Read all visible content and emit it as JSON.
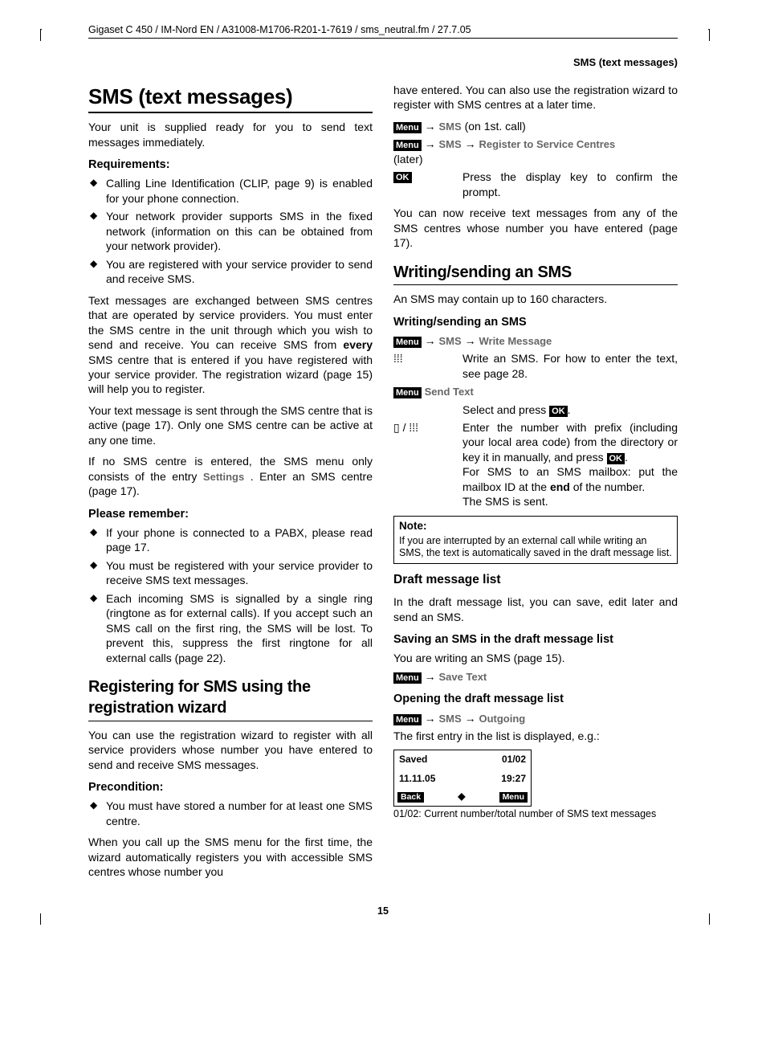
{
  "header_path": "Gigaset C 450 / IM-Nord EN / A31008-M1706-R201-1-7619 / sms_neutral.fm / 27.7.05",
  "running_head": "SMS (text messages)",
  "page_number": "15",
  "labels": {
    "menu": "Menu",
    "ok": "OK",
    "arrow": "→"
  },
  "left": {
    "h1": "SMS (text messages)",
    "intro": "Your unit is supplied ready for you to send text messages immediately.",
    "req_h": "Requirements:",
    "req": [
      "Calling Line Identification (CLIP, page 9) is enabled for your phone connection.",
      "Your network provider supports SMS in the fixed network (information on this can be obtained from your network provider).",
      "You are registered with your service provider to send and receive SMS."
    ],
    "para1a": "Text messages are exchanged between SMS centres that are operated by service providers. You must enter the SMS centre in the unit through which you wish to send and receive. You can receive SMS from ",
    "para1_bold": "every",
    "para1b": " SMS centre that is entered if you have registered with your service provider. The registration wizard (page 15) will help you to register.",
    "para2": "Your text message is sent through the SMS centre that is active (page 17). Only one SMS centre can be active at any one time.",
    "para3a": "If no SMS centre is entered, the SMS menu only consists of the entry ",
    "para3_settings": "Settings",
    "para3b": " . Enter an SMS centre (page 17).",
    "remember_h": "Please remember:",
    "remember": [
      "If your phone is connected to a PABX, please read page 17.",
      "You must be registered with your service provider to receive SMS text messages.",
      "Each incoming SMS is signalled by a single ring (ringtone as for external calls). If you accept such an SMS call on the first ring, the SMS will be lost. To prevent this, suppress the first ringtone for all external calls (page 22)."
    ],
    "h2_reg": "Registering for SMS using the registration wizard",
    "reg_para": "You can use the registration wizard to register with all service providers whose number you have entered to send and receive SMS messages.",
    "precond_h": "Precondition:",
    "precond": [
      "You must have stored a number for at least one SMS centre."
    ],
    "reg_para2": "When you call up the SMS menu for the first time, the wizard automatically registers you with accessible SMS centres whose number you"
  },
  "right": {
    "cont": "have entered. You can also use the registration wizard to register with SMS centres at a later time.",
    "nav1": {
      "sms": "SMS",
      "suffix": " (on 1st. call)"
    },
    "nav2": {
      "sms": "SMS",
      "reg": "Register to Service Centres",
      "suffix": "(later)"
    },
    "ok_step": "Press the display key to confirm the prompt.",
    "after_reg": "You can now receive text messages from any of the SMS centres whose number you have entered (page 17).",
    "h2_write": "Writing/sending an SMS",
    "write_intro": "An SMS may contain up to 160 characters.",
    "h3_write": "Writing/sending an SMS",
    "nav3": {
      "sms": "SMS",
      "wm": "Write Message"
    },
    "icon_step1": "Write an SMS. For how to enter the text, see page 28.",
    "send_text": "Send Text",
    "select_press": "Select and press ",
    "enter_num": "Enter the number with prefix (including your local area code) from the directory or key it in manually, and press ",
    "enter_num2a": "For SMS to an SMS mailbox: put the mailbox ID at the ",
    "enter_num2_bold": "end",
    "enter_num2b": " of the number.",
    "enter_num3": "The SMS is sent.",
    "note_title": "Note:",
    "note_body": "If you are interrupted by an external call while writing an SMS, the text is automatically saved in the draft message list.",
    "h3_draft": "Draft message list",
    "draft_para": "In the draft message list, you can save, edit later and send an SMS.",
    "h3_save": "Saving an SMS in the draft message list",
    "save_para": "You are writing an SMS (page 15).",
    "nav4": {
      "save": "Save Text"
    },
    "h3_open": "Opening the draft message list",
    "nav5": {
      "sms": "SMS",
      "out": "Outgoing"
    },
    "open_para": "The first entry in the list is displayed, e.g.:",
    "screen": {
      "r1l": "Saved",
      "r1r": "01/02",
      "r2l": "11.11.05",
      "r2r": "19:27",
      "skl": "Back",
      "skr": "Menu"
    },
    "caption": "01/02: Current number/total number of SMS text messages"
  }
}
